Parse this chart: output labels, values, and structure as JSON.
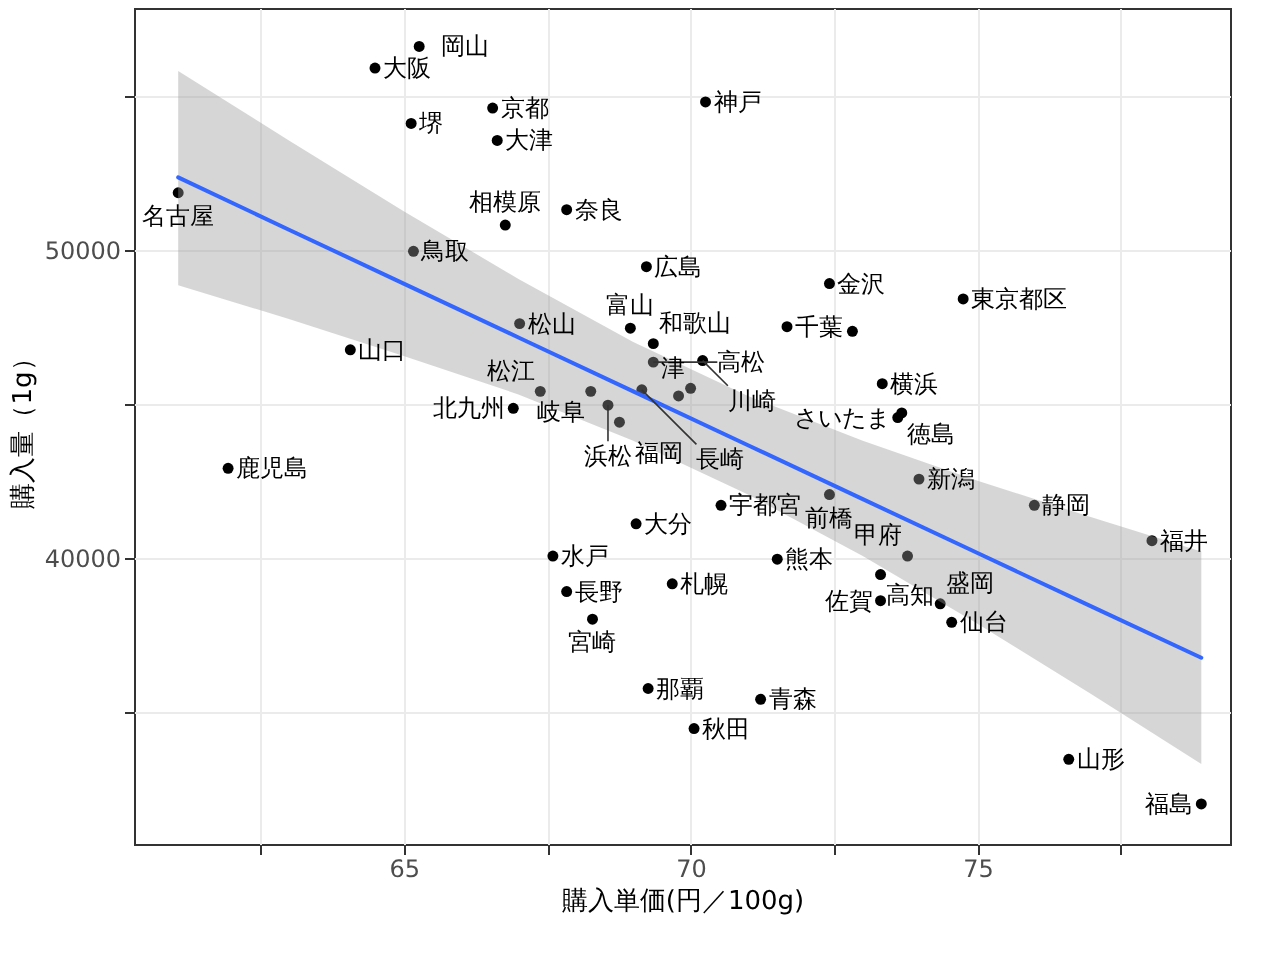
{
  "chart_data": {
    "type": "scatter",
    "xlabel": "購入単価(円／100g)",
    "ylabel": "購入量（1g）",
    "xlim": [
      60.3,
      79.4
    ],
    "ylim": [
      30700,
      57850
    ],
    "xticks": [
      {
        "value": 62.5,
        "label": null
      },
      65,
      {
        "value": 67.5,
        "label": null
      },
      70,
      {
        "value": 72.5,
        "label": null
      },
      75,
      {
        "value": 77.5,
        "label": null
      }
    ],
    "yticks": [
      {
        "value": 35000,
        "label": null
      },
      40000,
      {
        "value": 45000,
        "label": null
      },
      50000,
      {
        "value": 55000,
        "label": null
      }
    ],
    "grid": true,
    "series": [
      {
        "color": "#000000",
        "marker": "circle",
        "x": [
          61.07,
          61.94,
          64.07,
          64.5,
          65.13,
          65.27,
          65.17,
          66.55,
          66.63,
          66.77,
          67.84,
          70.26,
          69.23,
          72.42,
          74.75,
          67.02,
          68.95,
          69.35,
          71.68,
          72.82,
          73.34,
          69.35,
          70.21,
          70.0,
          69.79,
          73.61,
          73.68,
          67.38,
          68.26,
          69.15,
          66.91,
          68.56,
          68.76,
          69.05,
          70.53,
          72.42,
          67.6,
          71.51,
          69.68,
          67.84,
          68.29,
          69.26,
          71.22,
          70.06,
          73.98,
          75.99,
          73.78,
          78.04,
          73.31,
          73.31,
          74.35,
          74.55,
          76.59,
          78.9
        ],
        "values": [
          51850,
          42900,
          46750,
          55900,
          54100,
          56600,
          49950,
          54600,
          53550,
          50800,
          51300,
          54800,
          49450,
          48900,
          48400,
          47600,
          47450,
          46950,
          47500,
          47350,
          45650,
          46350,
          46400,
          45500,
          45250,
          44550,
          44700,
          45400,
          45400,
          45450,
          44850,
          44950,
          44400,
          41100,
          41700,
          42050,
          40050,
          39950,
          39150,
          38900,
          38000,
          35750,
          35400,
          34450,
          42550,
          41700,
          40050,
          40550,
          39450,
          38600,
          38500,
          37900,
          33450,
          32000
        ]
      },
      {
        "type": "line",
        "color": "#3366ff",
        "line_style": "solid",
        "x": [
          61.07,
          63,
          65,
          67,
          69,
          71,
          73,
          75,
          77,
          78.9
        ],
        "values": [
          52350,
          50650,
          48900,
          47150,
          45400,
          43650,
          41900,
          40150,
          38400,
          36750
        ],
        "lower": [
          48850,
          47750,
          46550,
          45300,
          43800,
          42050,
          40050,
          37850,
          35550,
          33300
        ],
        "upper": [
          55800,
          53550,
          51250,
          49050,
          47000,
          45250,
          43800,
          42500,
          41300,
          40200
        ]
      }
    ],
    "annotations": [
      {
        "text": "名古屋",
        "x": 61.07,
        "y": 51850
      },
      {
        "text": "鹿児島",
        "x": 61.94,
        "y": 42900
      },
      {
        "text": "山口",
        "x": 64.07,
        "y": 46750
      },
      {
        "text": "大阪",
        "x": 64.5,
        "y": 55900
      },
      {
        "text": "堺",
        "x": 65.13,
        "y": 54100
      },
      {
        "text": "岡山",
        "x": 65.27,
        "y": 56600
      },
      {
        "text": "鳥取",
        "x": 65.17,
        "y": 49950
      },
      {
        "text": "京都",
        "x": 66.55,
        "y": 54600
      },
      {
        "text": "大津",
        "x": 66.63,
        "y": 53550
      },
      {
        "text": "相模原",
        "x": 66.77,
        "y": 50800
      },
      {
        "text": "奈良",
        "x": 67.84,
        "y": 51300
      },
      {
        "text": "神戸",
        "x": 70.26,
        "y": 54800
      },
      {
        "text": "広島",
        "x": 69.23,
        "y": 49450
      },
      {
        "text": "金沢",
        "x": 72.42,
        "y": 48900
      },
      {
        "text": "東京都区",
        "x": 74.75,
        "y": 48400
      },
      {
        "text": "松山",
        "x": 67.02,
        "y": 47600
      },
      {
        "text": "富山",
        "x": 68.95,
        "y": 47450
      },
      {
        "text": "和歌山",
        "x": 69.35,
        "y": 46950
      },
      {
        "text": "千葉",
        "x": 71.68,
        "y": 47500
      },
      {
        "text": "横浜",
        "x": 73.34,
        "y": 45650
      },
      {
        "text": "高松",
        "x": 69.35,
        "y": 46350
      },
      {
        "text": "川崎",
        "x": 70.21,
        "y": 46400
      },
      {
        "text": "津",
        "x": 70.0,
        "y": 45500
      },
      {
        "text": "さいたま",
        "x": 73.61,
        "y": 44550
      },
      {
        "text": "徳島",
        "x": 73.68,
        "y": 44700
      },
      {
        "text": "松江",
        "x": 67.38,
        "y": 45400
      },
      {
        "text": "岐阜",
        "x": 68.26,
        "y": 45400
      },
      {
        "text": "北九州",
        "x": 66.91,
        "y": 44850
      },
      {
        "text": "浜松",
        "x": 68.56,
        "y": 44950
      },
      {
        "text": "福岡",
        "x": 68.76,
        "y": 44400
      },
      {
        "text": "長崎",
        "x": 69.15,
        "y": 45450
      },
      {
        "text": "宇都宮",
        "x": 70.53,
        "y": 41700
      },
      {
        "text": "前橋",
        "x": 72.42,
        "y": 42050
      },
      {
        "text": "大分",
        "x": 69.05,
        "y": 41100
      },
      {
        "text": "熊本",
        "x": 71.51,
        "y": 39950
      },
      {
        "text": "札幌",
        "x": 69.68,
        "y": 39150
      },
      {
        "text": "水戸",
        "x": 67.6,
        "y": 40050
      },
      {
        "text": "長野",
        "x": 67.84,
        "y": 38900
      },
      {
        "text": "宮崎",
        "x": 68.29,
        "y": 38000
      },
      {
        "text": "那覇",
        "x": 69.26,
        "y": 35750
      },
      {
        "text": "青森",
        "x": 71.22,
        "y": 35400
      },
      {
        "text": "秋田",
        "x": 70.06,
        "y": 34450
      },
      {
        "text": "新潟",
        "x": 73.98,
        "y": 42550
      },
      {
        "text": "静岡",
        "x": 75.99,
        "y": 41700
      },
      {
        "text": "甲府",
        "x": 73.78,
        "y": 40050
      },
      {
        "text": "福井",
        "x": 78.04,
        "y": 40550
      },
      {
        "text": "高知",
        "x": 73.31,
        "y": 39450
      },
      {
        "text": "佐賀",
        "x": 73.31,
        "y": 38600
      },
      {
        "text": "盛岡",
        "x": 74.35,
        "y": 38500
      },
      {
        "text": "仙台",
        "x": 74.55,
        "y": 37900
      },
      {
        "text": "山形",
        "x": 76.59,
        "y": 33450
      },
      {
        "text": "福島",
        "x": 78.9,
        "y": 32000
      }
    ]
  }
}
